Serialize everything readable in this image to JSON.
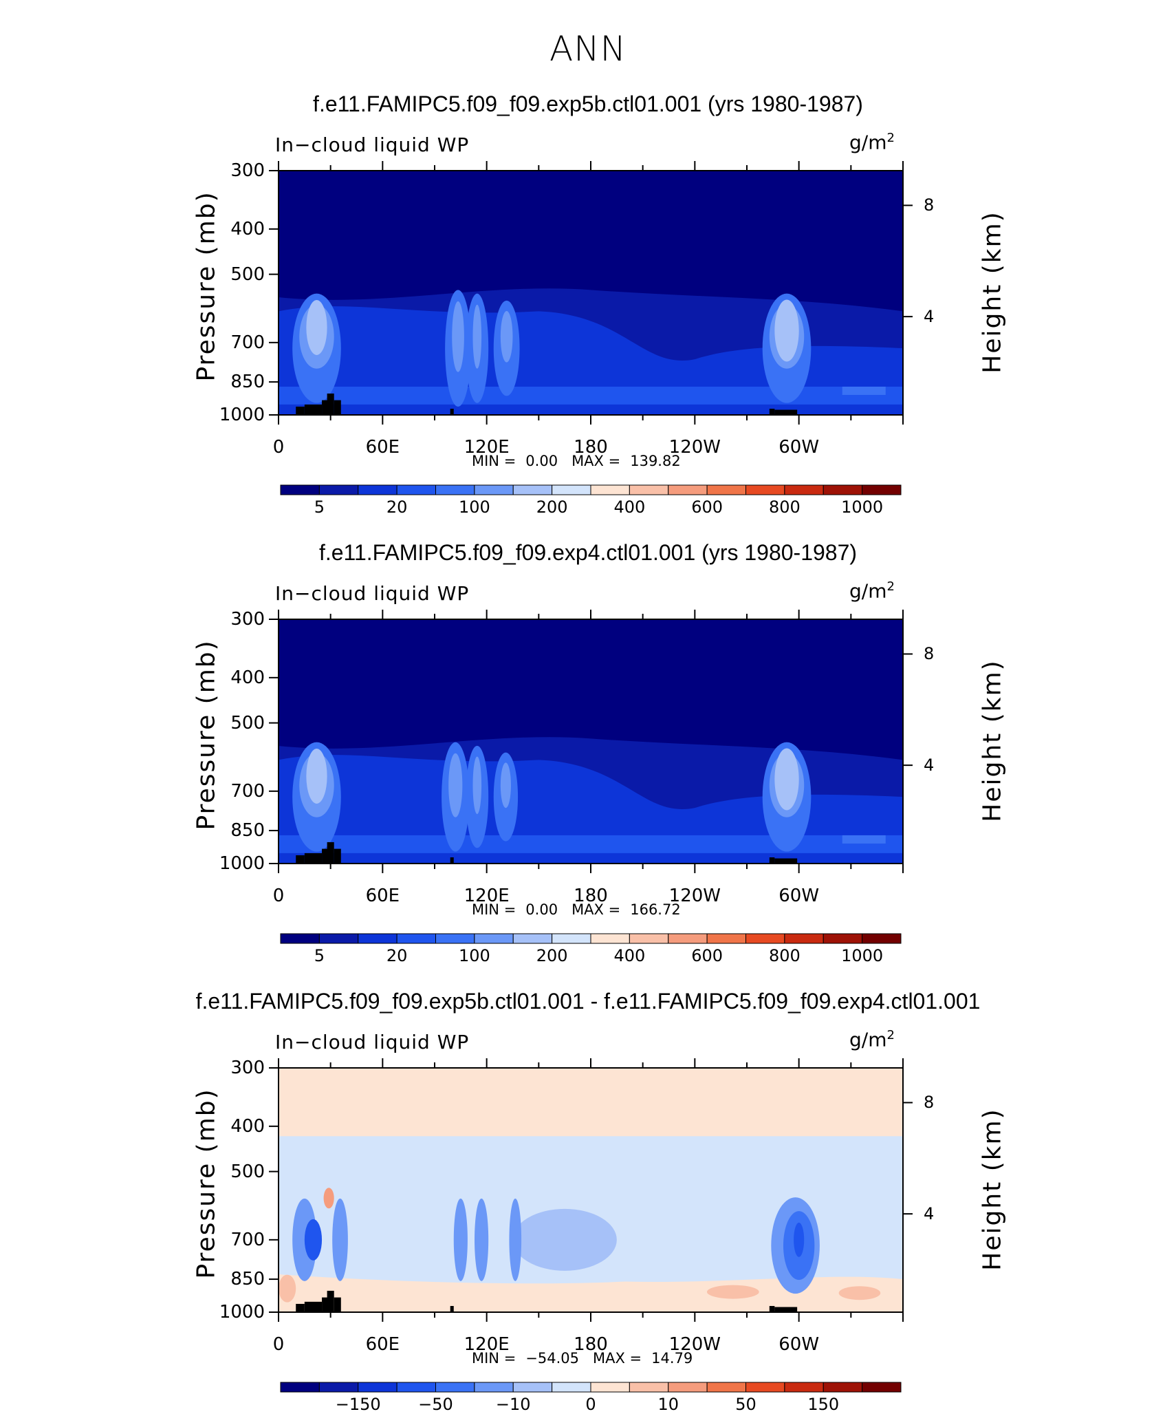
{
  "title": "ANN",
  "colors": {
    "frame": "#000000",
    "top_region": "#00007f",
    "topo": "#000000"
  },
  "chart_data": [
    {
      "type": "heatmap",
      "title": "f.e11.FAMIPC5.f09_f09.exp5b.ctl01.001 (yrs 1980-1987)",
      "variable": "In−cloud liquid WP",
      "units": "g/m",
      "units_sup": "2",
      "ylabel": "Pressure (mb)",
      "ylabel_right": "Height (km)",
      "yticks": [
        "300",
        "400",
        "500",
        "700",
        "850",
        "1000"
      ],
      "yticks_right": [
        "8",
        "4"
      ],
      "xticks": [
        "0",
        "60E",
        "120E",
        "180",
        "120W",
        "60W"
      ],
      "min_label": "MIN =",
      "min_value": "0.00",
      "max_label": "MAX =",
      "max_value": "139.82",
      "colorbar_labels": [
        "5",
        "20",
        "100",
        "200",
        "400",
        "600",
        "800",
        "1000"
      ]
    },
    {
      "type": "heatmap",
      "title": "f.e11.FAMIPC5.f09_f09.exp4.ctl01.001 (yrs 1980-1987)",
      "variable": "In−cloud liquid WP",
      "units": "g/m",
      "units_sup": "2",
      "ylabel": "Pressure (mb)",
      "ylabel_right": "Height (km)",
      "yticks": [
        "300",
        "400",
        "500",
        "700",
        "850",
        "1000"
      ],
      "yticks_right": [
        "8",
        "4"
      ],
      "xticks": [
        "0",
        "60E",
        "120E",
        "180",
        "120W",
        "60W"
      ],
      "min_label": "MIN =",
      "min_value": "0.00",
      "max_label": "MAX =",
      "max_value": "166.72",
      "colorbar_labels": [
        "5",
        "20",
        "100",
        "200",
        "400",
        "600",
        "800",
        "1000"
      ]
    },
    {
      "type": "heatmap",
      "title": "f.e11.FAMIPC5.f09_f09.exp5b.ctl01.001 - f.e11.FAMIPC5.f09_f09.exp4.ctl01.001",
      "variable": "In−cloud liquid WP",
      "units": "g/m",
      "units_sup": "2",
      "ylabel": "Pressure (mb)",
      "ylabel_right": "Height (km)",
      "yticks": [
        "300",
        "400",
        "500",
        "700",
        "850",
        "1000"
      ],
      "yticks_right": [
        "8",
        "4"
      ],
      "xticks": [
        "0",
        "60E",
        "120E",
        "180",
        "120W",
        "60W"
      ],
      "min_label": "MIN =",
      "min_value": "−54.05",
      "max_label": "MAX =",
      "max_value": "14.79",
      "colorbar_labels": [
        "−150",
        "−50",
        "−10",
        "0",
        "10",
        "50",
        "150"
      ]
    }
  ],
  "colorbar_colors": [
    "#00007f",
    "#0a1aa8",
    "#0d35d8",
    "#1f55ee",
    "#3a72f5",
    "#6b98f7",
    "#a6c1f8",
    "#d3e4fb",
    "#fde4d3",
    "#f9c0a8",
    "#f59c7d",
    "#f07549",
    "#e74a22",
    "#c92a10",
    "#9e1206",
    "#730000"
  ]
}
